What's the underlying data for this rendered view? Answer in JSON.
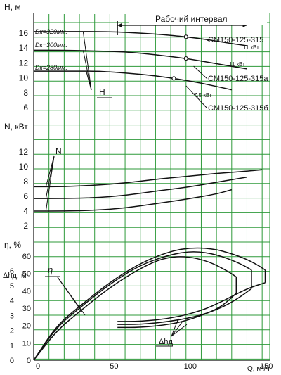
{
  "chart_data": [
    {
      "type": "line",
      "ylabel": "H, м",
      "ylim": [
        4,
        17
      ],
      "yticks": [
        6,
        8,
        10,
        12,
        14,
        16
      ],
      "xlim": [
        0,
        155
      ],
      "legend_band": "Рабочий интервал",
      "band_range": [
        55,
        140
      ],
      "series": [
        {
          "name": "СМ150-125-315",
          "diameter_label": "Dк=320мм.",
          "motor_label": "11 кВт",
          "x": [
            0,
            20,
            40,
            55,
            70,
            85,
            100,
            115,
            130,
            140
          ],
          "values": [
            16.2,
            16.2,
            16.2,
            16.15,
            16.0,
            15.8,
            15.5,
            15.1,
            14.6,
            14.3
          ]
        },
        {
          "name": "СМ150-125-315а",
          "diameter_label": "Dк=300мм.",
          "motor_label": "11 кВт",
          "x": [
            0,
            20,
            40,
            60,
            80,
            100,
            120,
            140
          ],
          "values": [
            13.7,
            13.7,
            13.6,
            13.5,
            13.1,
            12.6,
            11.9,
            11.2
          ]
        },
        {
          "name": "СМ150-125-315б",
          "diameter_label": "Dк=280мм.",
          "motor_label": "7,5 кВт",
          "x": [
            0,
            20,
            40,
            50,
            70,
            90,
            110,
            130
          ],
          "values": [
            10.9,
            10.9,
            10.9,
            10.8,
            10.5,
            10.0,
            9.3,
            8.4
          ]
        }
      ],
      "annotation": "H"
    },
    {
      "type": "line",
      "ylabel": "N, кВт",
      "ylim": [
        2,
        14
      ],
      "yticks": [
        2,
        4,
        6,
        8,
        10,
        12
      ],
      "xlim": [
        0,
        155
      ],
      "series": [
        {
          "x": [
            0,
            20,
            40,
            60,
            80,
            100,
            120,
            140,
            150
          ],
          "values": [
            7.3,
            7.3,
            7.5,
            7.8,
            8.3,
            8.7,
            9.1,
            9.4,
            9.6
          ]
        },
        {
          "x": [
            0,
            20,
            40,
            60,
            80,
            100,
            120,
            140
          ],
          "values": [
            5.7,
            5.7,
            5.8,
            6.1,
            6.7,
            7.2,
            7.9,
            8.6
          ]
        },
        {
          "x": [
            0,
            20,
            40,
            60,
            80,
            100,
            120,
            130
          ],
          "values": [
            4.0,
            4.0,
            4.1,
            4.4,
            5.0,
            5.6,
            6.3,
            6.9
          ]
        }
      ],
      "annotation": "N"
    },
    {
      "type": "line",
      "ylabel": "η, %",
      "ylim": [
        0,
        70
      ],
      "yticks": [
        0,
        10,
        20,
        30,
        40,
        50,
        60
      ],
      "xlim": [
        0,
        155
      ],
      "xticks": [
        0,
        50,
        100,
        150
      ],
      "xlabel": "Q, м³/ч",
      "series": [
        {
          "x": [
            0,
            15,
            30,
            50,
            70,
            90,
            105,
            120,
            135,
            145,
            152
          ],
          "values": [
            0,
            20,
            31,
            45,
            56,
            63,
            65,
            64,
            60,
            56,
            52
          ]
        },
        {
          "x": [
            0,
            15,
            30,
            50,
            70,
            90,
            105,
            120,
            135,
            143
          ],
          "values": [
            0,
            19,
            30,
            44,
            55,
            61,
            63,
            61,
            56,
            52
          ]
        },
        {
          "x": [
            0,
            15,
            30,
            50,
            70,
            85,
            100,
            115,
            128,
            133
          ],
          "values": [
            0,
            17,
            28,
            42,
            53,
            59,
            60,
            57,
            51,
            48
          ]
        }
      ],
      "annotation": "η"
    },
    {
      "type": "line",
      "ylabel": "Δhд, м",
      "ylim": [
        0,
        7
      ],
      "yticks": [
        0,
        1,
        2,
        3,
        4,
        5,
        6
      ],
      "xlim": [
        0,
        155
      ],
      "series": [
        {
          "x": [
            55,
            70,
            90,
            110,
            125,
            140,
            152
          ],
          "values": [
            2.6,
            2.6,
            2.8,
            3.3,
            4.0,
            4.8,
            5.2
          ]
        },
        {
          "x": [
            55,
            70,
            90,
            110,
            125,
            135,
            143
          ],
          "values": [
            2.4,
            2.4,
            2.6,
            3.0,
            3.6,
            4.2,
            4.8
          ]
        },
        {
          "x": [
            55,
            70,
            90,
            105,
            120,
            128,
            133
          ],
          "values": [
            2.2,
            2.2,
            2.4,
            2.8,
            3.4,
            4.0,
            4.5
          ]
        }
      ],
      "annotation": "Δhд"
    }
  ]
}
